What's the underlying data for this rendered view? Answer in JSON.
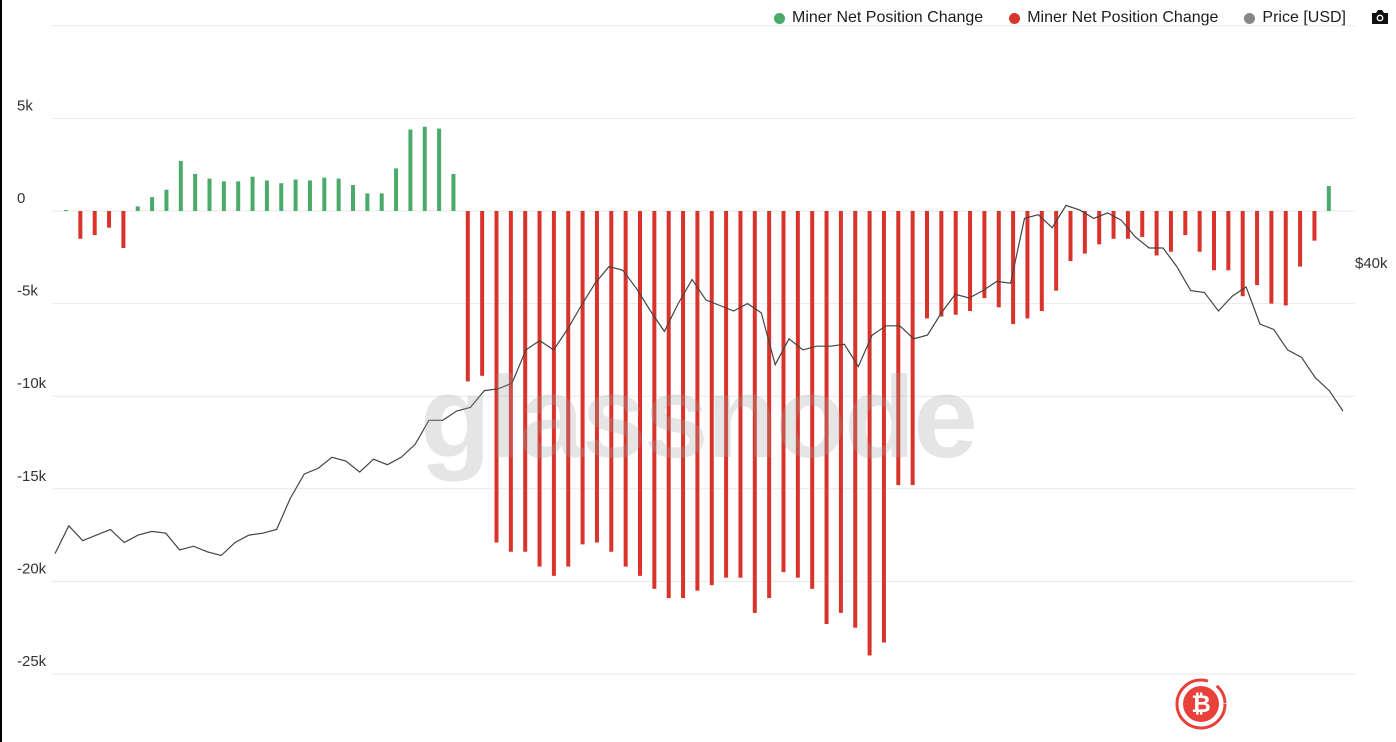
{
  "legend": {
    "series_positive": "Miner Net Position Change",
    "series_negative": "Miner Net Position Change",
    "series_price": "Price [USD]"
  },
  "watermark": "glassnode",
  "colors": {
    "positive": "#4aaa6a",
    "negative": "#d9342b",
    "price": "#444444",
    "grid": "#e9e9e9",
    "price_dot": "#888888"
  },
  "icons": {
    "camera": "camera-icon",
    "logo": "bitcoin-logo"
  },
  "chart_data": {
    "type": "bar",
    "ylim": [
      -27500,
      10000
    ],
    "y_ticks": [
      {
        "value": 5000,
        "label": "5k"
      },
      {
        "value": 0,
        "label": "0"
      },
      {
        "value": -5000,
        "label": "-5k"
      },
      {
        "value": -10000,
        "label": "-10k"
      },
      {
        "value": -15000,
        "label": "-15k"
      },
      {
        "value": -20000,
        "label": "-20k"
      },
      {
        "value": -25000,
        "label": "-25k"
      }
    ],
    "right_axis": {
      "label": "$40k",
      "value": 40000
    },
    "grid": true,
    "legend_position": "top-right",
    "series": [
      {
        "name": "Miner Net Position Change",
        "values": [
          50,
          -1500,
          -1300,
          -900,
          -2000,
          250,
          750,
          1150,
          2700,
          2000,
          1750,
          1600,
          1600,
          1850,
          1650,
          1500,
          1700,
          1650,
          1800,
          1750,
          1400,
          950,
          950,
          2300,
          4400,
          4550,
          4450,
          2000,
          -9200,
          -8900,
          -17900,
          -18400,
          -18400,
          -19200,
          -19700,
          -19200,
          -18000,
          -17900,
          -18400,
          -19200,
          -19700,
          -20400,
          -20900,
          -20900,
          -20500,
          -20200,
          -19800,
          -19800,
          -21700,
          -20900,
          -19500,
          -19800,
          -20400,
          -22300,
          -21700,
          -22500,
          -24000,
          -23300,
          -14800,
          -14800,
          -5800,
          -5700,
          -5600,
          -5400,
          -4700,
          -5200,
          -6100,
          -5800,
          -5400,
          -4300,
          -2700,
          -2300,
          -1800,
          -1500,
          -1500,
          -1400,
          -2400,
          -2200,
          -1300,
          -2200,
          -3200,
          -3200,
          -4600,
          -4000,
          -5000,
          -5100,
          -3000,
          -1600,
          1350
        ]
      },
      {
        "name": "Price [USD]",
        "values": [
          18500,
          17000,
          17800,
          17500,
          17200,
          17900,
          17500,
          17300,
          17400,
          18300,
          18100,
          18400,
          18600,
          17900,
          17500,
          17400,
          17200,
          15500,
          14200,
          13900,
          13300,
          13500,
          14100,
          13400,
          13700,
          13300,
          12600,
          11300,
          11300,
          10800,
          10600,
          9700,
          9600,
          9300,
          7500,
          7000,
          7500,
          6400,
          5100,
          3900,
          3000,
          3200,
          4200,
          5400,
          6500,
          5000,
          3700,
          4800,
          5100,
          5400,
          5000,
          5500,
          8300,
          6900,
          7500,
          7300,
          7300,
          7200,
          8400,
          6700,
          6200,
          6200,
          6900,
          6700,
          5500,
          4500,
          4700,
          4300,
          3800,
          3900,
          400,
          200,
          900,
          -300,
          -50,
          400,
          100,
          500,
          1400,
          2000,
          2000,
          3000,
          4300,
          4400,
          5400,
          4600,
          4100,
          6100,
          6400,
          7500,
          7900,
          9000,
          9700,
          10800
        ]
      }
    ]
  }
}
